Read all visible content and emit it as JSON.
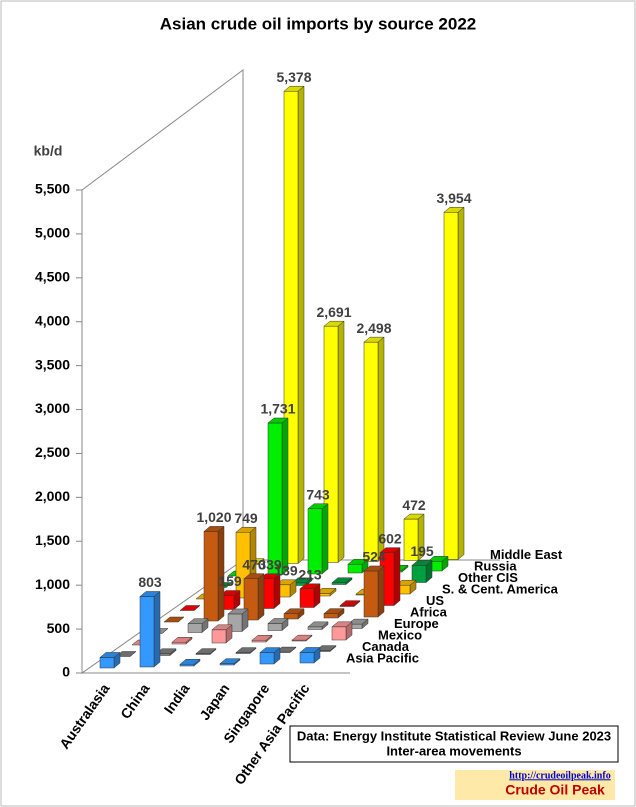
{
  "chart_data": {
    "type": "bar3d",
    "title": "Asian crude oil imports by source 2022",
    "ylabel": "kb/d",
    "categories": [
      "Australasia",
      "China",
      "India",
      "Japan",
      "Singapore",
      "Other Asia Pacific"
    ],
    "ylim": [
      0,
      5500
    ],
    "yticks": [
      0,
      500,
      {
        "value": 1000,
        "label": "1,000"
      },
      {
        "value": 1500,
        "label": "1,500"
      },
      {
        "value": 2000,
        "label": "2,000"
      },
      {
        "value": 2500,
        "label": "2,500"
      },
      {
        "value": 3000,
        "label": "3,000"
      },
      {
        "value": 3500,
        "label": "3,500"
      },
      {
        "value": 4000,
        "label": "4,000"
      },
      {
        "value": 4500,
        "label": "4,500"
      },
      {
        "value": 5000,
        "label": "5,000"
      },
      {
        "value": 5500,
        "label": "5,500"
      }
    ],
    "series": [
      {
        "name": "Asia Pacific",
        "color": "#3399ff",
        "values": [
          120,
          803,
          20,
          15,
          130,
          120
        ],
        "value_labels": [
          null,
          "803",
          null,
          null,
          null,
          null
        ]
      },
      {
        "name": "Canada",
        "color": "#808080",
        "values": [
          0,
          20,
          10,
          10,
          5,
          10
        ]
      },
      {
        "name": "Mexico",
        "color": "#ff9999",
        "values": [
          0,
          20,
          150,
          20,
          10,
          150
        ]
      },
      {
        "name": "Europe",
        "color": "#a6a6a6",
        "values": [
          0,
          100,
          200,
          80,
          30,
          50
        ]
      },
      {
        "name": "Africa",
        "color": "#c55a11",
        "values": [
          0,
          1020,
          470,
          60,
          50,
          524
        ],
        "value_labels": [
          null,
          "1,020",
          "470",
          null,
          null,
          "524"
        ]
      },
      {
        "name": "US",
        "color": "#ff0000",
        "values": [
          0,
          159,
          339,
          213,
          10,
          602
        ],
        "value_labels": [
          null,
          "159",
          "339",
          "213",
          null,
          "602"
        ]
      },
      {
        "name": "S. & Cent. America",
        "color": "#ffc000",
        "values": [
          0,
          749,
          139,
          30,
          10,
          100
        ],
        "value_labels": [
          null,
          "749",
          "139",
          null,
          null,
          null
        ]
      },
      {
        "name": "Other CIS",
        "color": "#00a040",
        "values": [
          0,
          60,
          30,
          20,
          10,
          195
        ],
        "value_labels": [
          null,
          null,
          null,
          null,
          null,
          "195"
        ]
      },
      {
        "name": "Russia",
        "color": "#00ee00",
        "values": [
          0,
          1731,
          743,
          100,
          20,
          110
        ],
        "value_labels": [
          null,
          "1,731",
          "743",
          null,
          null,
          null
        ]
      },
      {
        "name": "Middle East",
        "color": "#ffff00",
        "values": [
          10,
          5378,
          2691,
          2498,
          472,
          3954
        ],
        "value_labels": [
          null,
          "5,378",
          "2,691",
          "2,498",
          "472",
          "3,954"
        ]
      }
    ],
    "source": [
      "Data: Energy Institute  Statistical Review June 2023",
      "Inter-area movements"
    ],
    "watermark": [
      "http://crudeoilpeak.info",
      "Crude Oil Peak"
    ]
  }
}
